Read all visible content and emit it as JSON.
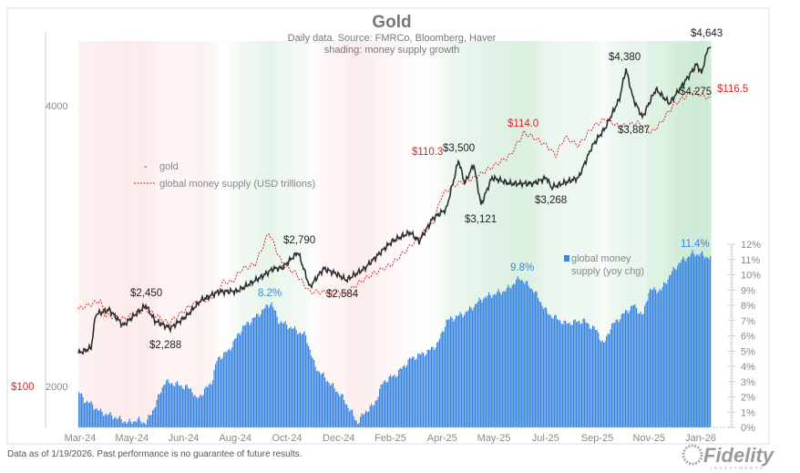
{
  "chart_data": {
    "type": "line",
    "title": "Gold",
    "subtitle": [
      "Daily data.  Source: FMRCo, Bloomberg, Haver",
      "shading: money supply growth"
    ],
    "x_unit": "months since Mar-24",
    "x_tick_labels": [
      "Mar-24",
      "May-24",
      "Jun-24",
      "Aug-24",
      "Oct-24",
      "Dec-24",
      "Feb-25",
      "Apr-25",
      "May-25",
      "Jul-25",
      "Sep-25",
      "Nov-25",
      "Jan-26"
    ],
    "x_range": [
      0,
      22.6
    ],
    "left_axis": {
      "scale": "log",
      "ticks": [
        "4000",
        "2000"
      ],
      "money_ticks": [
        "$100"
      ]
    },
    "right_axis": {
      "ticks": [
        "0%",
        "1%",
        "2%",
        "3%",
        "4%",
        "5%",
        "6%",
        "7%",
        "8%",
        "9%",
        "10%",
        "11%",
        "12%"
      ],
      "range": [
        0,
        12
      ]
    },
    "legend": {
      "gold": "gold",
      "money": "global money supply (USD trillions)",
      "growth_line1": "global money",
      "growth_line2": "supply (yoy chg)"
    },
    "series": [
      {
        "name": "gold",
        "color": "#333333",
        "points": [
          [
            0,
            2171
          ],
          [
            0.46,
            2200
          ],
          [
            0.62,
            2390
          ],
          [
            1.11,
            2417
          ],
          [
            1.6,
            2325
          ],
          [
            2.41,
            2443
          ],
          [
            2.74,
            2350
          ],
          [
            3.29,
            2310
          ],
          [
            3.87,
            2380
          ],
          [
            4.36,
            2471
          ],
          [
            5.01,
            2527
          ],
          [
            5.67,
            2530
          ],
          [
            6.48,
            2614
          ],
          [
            6.97,
            2675
          ],
          [
            7.29,
            2680
          ],
          [
            7.85,
            2787
          ],
          [
            8.27,
            2555
          ],
          [
            8.76,
            2675
          ],
          [
            9.25,
            2640
          ],
          [
            9.57,
            2600
          ],
          [
            10.22,
            2675
          ],
          [
            11.2,
            2860
          ],
          [
            11.85,
            2926
          ],
          [
            12.18,
            2860
          ],
          [
            12.67,
            3029
          ],
          [
            13.15,
            3098
          ],
          [
            13.48,
            3386
          ],
          [
            13.58,
            3500
          ],
          [
            13.81,
            3300
          ],
          [
            14.13,
            3462
          ],
          [
            14.39,
            3128
          ],
          [
            14.78,
            3349
          ],
          [
            15.43,
            3300
          ],
          [
            16.25,
            3300
          ],
          [
            16.74,
            3349
          ],
          [
            16.9,
            3268
          ],
          [
            17.88,
            3349
          ],
          [
            18.37,
            3622
          ],
          [
            18.85,
            3794
          ],
          [
            19.34,
            4068
          ],
          [
            19.57,
            4380
          ],
          [
            19.83,
            4068
          ],
          [
            20.16,
            3887
          ],
          [
            20.64,
            4166
          ],
          [
            21.13,
            4022
          ],
          [
            21.62,
            4221
          ],
          [
            22.11,
            4433
          ],
          [
            22.27,
            4330
          ],
          [
            22.53,
            4643
          ],
          [
            22.6,
            4591
          ]
        ]
      },
      {
        "name": "global money supply (USD trillions)",
        "color": "#d62728",
        "points": [
          [
            0,
            101.7
          ],
          [
            0.78,
            102.3
          ],
          [
            0.94,
            101.3
          ],
          [
            1.6,
            101.0
          ],
          [
            2.41,
            101.7
          ],
          [
            3.22,
            100.7
          ],
          [
            4.04,
            102.0
          ],
          [
            4.85,
            102.6
          ],
          [
            5.18,
            103.6
          ],
          [
            5.5,
            103.6
          ],
          [
            5.83,
            104.5
          ],
          [
            6.32,
            104.85
          ],
          [
            6.81,
            107.1
          ],
          [
            7.29,
            104.85
          ],
          [
            7.78,
            104.2
          ],
          [
            8.27,
            102.9
          ],
          [
            8.92,
            102.9
          ],
          [
            9.57,
            102.8
          ],
          [
            10.06,
            103.6
          ],
          [
            10.55,
            104.2
          ],
          [
            11.2,
            104.85
          ],
          [
            11.85,
            106.1
          ],
          [
            12.18,
            106.8
          ],
          [
            12.67,
            107.7
          ],
          [
            12.99,
            109.7
          ],
          [
            13.32,
            110.3
          ],
          [
            13.64,
            110.6
          ],
          [
            14.13,
            110.9
          ],
          [
            14.95,
            111.9
          ],
          [
            15.43,
            112.5
          ],
          [
            15.92,
            114.1
          ],
          [
            16.25,
            113.8
          ],
          [
            16.74,
            113.2
          ],
          [
            17.06,
            112.5
          ],
          [
            17.39,
            113.8
          ],
          [
            17.88,
            113.2
          ],
          [
            18.37,
            114.5
          ],
          [
            18.85,
            115.1
          ],
          [
            19.34,
            114.5
          ],
          [
            19.99,
            114.8
          ],
          [
            20.48,
            114.1
          ],
          [
            20.81,
            114.8
          ],
          [
            21.29,
            116.1
          ],
          [
            21.95,
            117.0
          ],
          [
            22.6,
            116.5
          ]
        ]
      },
      {
        "name": "global money supply (yoy chg)",
        "type": "bar",
        "color": "#3a86e0",
        "points": [
          [
            0,
            2.3
          ],
          [
            0.2,
            1.8
          ],
          [
            0.46,
            1.5
          ],
          [
            0.78,
            1.0
          ],
          [
            1.27,
            0.7
          ],
          [
            1.76,
            0.3
          ],
          [
            2.08,
            0.5
          ],
          [
            2.41,
            0.3
          ],
          [
            2.74,
            1.5
          ],
          [
            3.06,
            3.0
          ],
          [
            3.55,
            2.8
          ],
          [
            4.04,
            2.5
          ],
          [
            4.2,
            1.8
          ],
          [
            4.53,
            2.5
          ],
          [
            4.75,
            3.0
          ],
          [
            4.95,
            4.5
          ],
          [
            5.34,
            5.0
          ],
          [
            5.83,
            6.5
          ],
          [
            6.48,
            7.5
          ],
          [
            6.87,
            8.2
          ],
          [
            7.13,
            7.0
          ],
          [
            7.62,
            6.5
          ],
          [
            8.11,
            6.0
          ],
          [
            8.43,
            4.0
          ],
          [
            8.92,
            3.0
          ],
          [
            9.41,
            2.0
          ],
          [
            9.74,
            1.0
          ],
          [
            9.96,
            0.3
          ],
          [
            10.22,
            1.0
          ],
          [
            10.55,
            1.5
          ],
          [
            10.88,
            3.0
          ],
          [
            11.36,
            3.5
          ],
          [
            11.85,
            4.5
          ],
          [
            12.5,
            5.0
          ],
          [
            12.83,
            5.5
          ],
          [
            13.15,
            7.0
          ],
          [
            13.81,
            7.5
          ],
          [
            14.46,
            8.5
          ],
          [
            15.27,
            9.0
          ],
          [
            15.76,
            9.8
          ],
          [
            16.25,
            9.0
          ],
          [
            16.74,
            7.5
          ],
          [
            17.39,
            6.8
          ],
          [
            18.04,
            7.0
          ],
          [
            18.53,
            6.3
          ],
          [
            18.75,
            5.4
          ],
          [
            19.01,
            6.6
          ],
          [
            19.5,
            7.5
          ],
          [
            19.83,
            8.0
          ],
          [
            20.16,
            7.3
          ],
          [
            20.38,
            9.0
          ],
          [
            20.81,
            9.0
          ],
          [
            21.13,
            10.0
          ],
          [
            21.46,
            10.8
          ],
          [
            21.95,
            11.4
          ],
          [
            22.27,
            11.3
          ],
          [
            22.6,
            11.1
          ]
        ]
      }
    ],
    "annotations": {
      "g4643": "$4,643",
      "g4380": "$4,380",
      "g4275": "$4,275",
      "g3887": "$3,887",
      "g3500": "$3,500",
      "g3121": "$3,121",
      "g3268": "$3,268",
      "g2790": "$2,790",
      "g2450": "$2,450",
      "g2584": "$2,584",
      "g2288": "$2,288",
      "m1165": "$116.5",
      "m1140": "$114.0",
      "m1103": "$110.3",
      "p82": "8.2%",
      "p98": "9.8%",
      "p114": "11.4%"
    }
  },
  "footer": "Data as of 1/19/2026. Past performance is no guarantee of future results.",
  "logo": {
    "name": "Fidelity",
    "sub": "INVESTMENTS"
  }
}
